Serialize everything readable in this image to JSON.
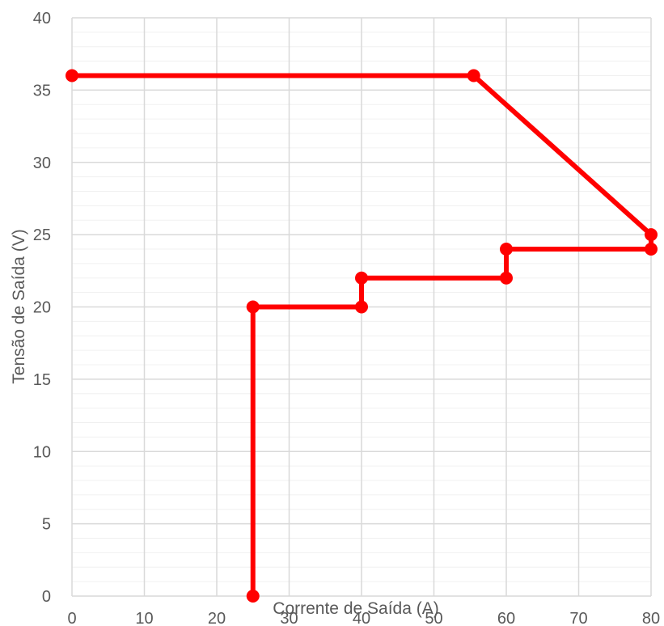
{
  "chart_data": {
    "type": "line",
    "xlabel": "Corrente de Saída (A)",
    "ylabel": "Tensão de Saída (V)",
    "xlim": [
      0,
      80
    ],
    "ylim": [
      0,
      40
    ],
    "xticks": [
      "0",
      "10",
      "20",
      "30",
      "40",
      "50",
      "60",
      "70",
      "80"
    ],
    "yticks": [
      "0",
      "5",
      "10",
      "15",
      "20",
      "25",
      "30",
      "35",
      "40"
    ],
    "grid": true,
    "minor_grid": true,
    "legend": "none",
    "series": [
      {
        "color": "#ff0000",
        "marker": "circle",
        "points": [
          [
            0,
            36
          ],
          [
            55.5,
            36
          ],
          [
            80,
            25
          ],
          [
            80,
            24
          ],
          [
            60,
            24
          ],
          [
            60,
            22
          ],
          [
            40,
            22
          ],
          [
            40,
            20
          ],
          [
            25,
            20
          ],
          [
            25,
            0
          ]
        ]
      }
    ]
  },
  "colors": {
    "major_grid": "#d9d9d9",
    "minor_grid": "#f0f0f0",
    "text": "#595959"
  }
}
